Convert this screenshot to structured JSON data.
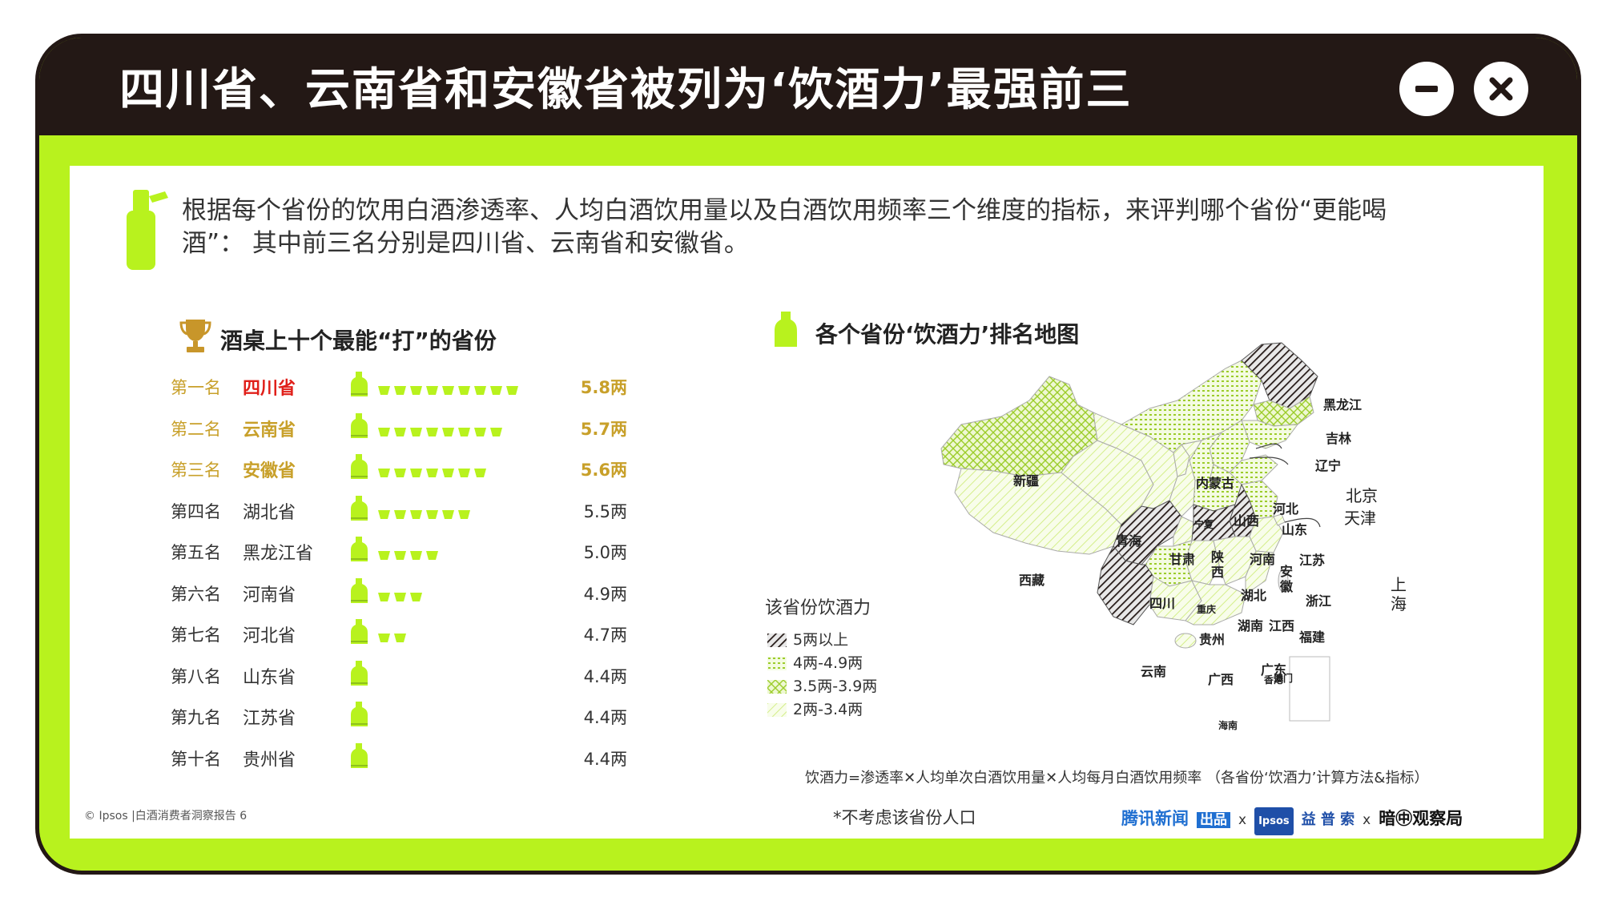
{
  "header": {
    "title": "四川省、云南省和安徽省被列为‘饮酒力’最强前三"
  },
  "window_controls": {
    "minimize_icon": "minus-icon",
    "close_icon": "close-icon"
  },
  "intro": {
    "text": "根据每个省份的饮用白酒渗透率、人均白酒饮用量以及白酒饮用频率三个维度的指标，来评判哪个省份“更能喝酒”： 其中前三名分别是四川省、云南省和安徽省。"
  },
  "ranking": {
    "title": "酒桌上十个最能“打”的省份",
    "rows": [
      {
        "rank": "第一名",
        "province": "四川省",
        "value": "5.8两"
      },
      {
        "rank": "第二名",
        "province": "云南省",
        "value": "5.7两"
      },
      {
        "rank": "第三名",
        "province": "安徽省",
        "value": "5.6两"
      },
      {
        "rank": "第四名",
        "province": "湖北省",
        "value": "5.5两"
      },
      {
        "rank": "第五名",
        "province": "黑龙江省",
        "value": "5.0两"
      },
      {
        "rank": "第六名",
        "province": "河南省",
        "value": "4.9两"
      },
      {
        "rank": "第七名",
        "province": "河北省",
        "value": "4.7两"
      },
      {
        "rank": "第八名",
        "province": "山东省",
        "value": "4.4两"
      },
      {
        "rank": "第九名",
        "province": "江苏省",
        "value": "4.4两"
      },
      {
        "rank": "第十名",
        "province": "贵州省",
        "value": "4.4两"
      }
    ]
  },
  "chart_data": {
    "type": "bar",
    "title": "酒桌上十个最能“打”的省份",
    "categories": [
      "四川省",
      "云南省",
      "安徽省",
      "湖北省",
      "黑龙江省",
      "河南省",
      "河北省",
      "山东省",
      "江苏省",
      "贵州省"
    ],
    "values": [
      5.8,
      5.7,
      5.6,
      5.5,
      5.0,
      4.9,
      4.7,
      4.4,
      4.4,
      4.4
    ],
    "cup_counts": [
      9,
      8,
      7,
      6,
      4,
      3,
      2,
      0,
      0,
      0
    ],
    "unit": "两"
  },
  "map": {
    "title": "各个省份‘饮酒力’排名地图",
    "legend_title": "该省份饮酒力",
    "legend": [
      {
        "label": "5两以上",
        "pattern": "dark-hatch"
      },
      {
        "label": "4两-4.9两",
        "pattern": "green-dots"
      },
      {
        "label": "3.5两-3.9两",
        "pattern": "green-cross"
      },
      {
        "label": "2两-3.4两",
        "pattern": "light-diagonal"
      }
    ],
    "labels": {
      "xinjiang": "新疆",
      "xizang": "西藏",
      "qinghai": "青海",
      "gansu": "甘肃",
      "neimenggu": "内蒙古",
      "heilongjiang": "黑龙江",
      "jilin": "吉林",
      "liaoning": "辽宁",
      "beijing": "北京",
      "tianjin": "天津",
      "hebei": "河北",
      "shanxi": "山西",
      "shandong": "山东",
      "ningxia": "宁夏",
      "shaanxi": "陕西",
      "henan": "河南",
      "jiangsu": "江苏",
      "anhui": "安徽",
      "shanghai": "上海",
      "sichuan": "四川",
      "chongqing": "重庆",
      "hubei": "湖北",
      "zhejiang": "浙江",
      "hunan": "湖南",
      "jiangxi": "江西",
      "guizhou": "贵州",
      "fujian": "福建",
      "yunnan": "云南",
      "guangxi": "广西",
      "guangdong": "广东",
      "hongkong": "香港",
      "aomen": "澳门",
      "hainan": "海南"
    }
  },
  "footer": {
    "formula": "饮酒力=渗透率✕人均单次白酒饮用量✕人均每月白酒饮用频率 （各省份‘饮酒力’计算方法&指标）",
    "note": "*不考虑该省份人口",
    "copyright": "© Ipsos |白酒消费者洞察报告   6",
    "logo_tencent": "腾讯新闻",
    "logo_tencent_tag": "出品",
    "logo_x": "x",
    "logo_ipsos": "Ipsos",
    "logo_ipsos_cn": "益 普 索",
    "logo_guancha": "暗㊥观察局"
  }
}
